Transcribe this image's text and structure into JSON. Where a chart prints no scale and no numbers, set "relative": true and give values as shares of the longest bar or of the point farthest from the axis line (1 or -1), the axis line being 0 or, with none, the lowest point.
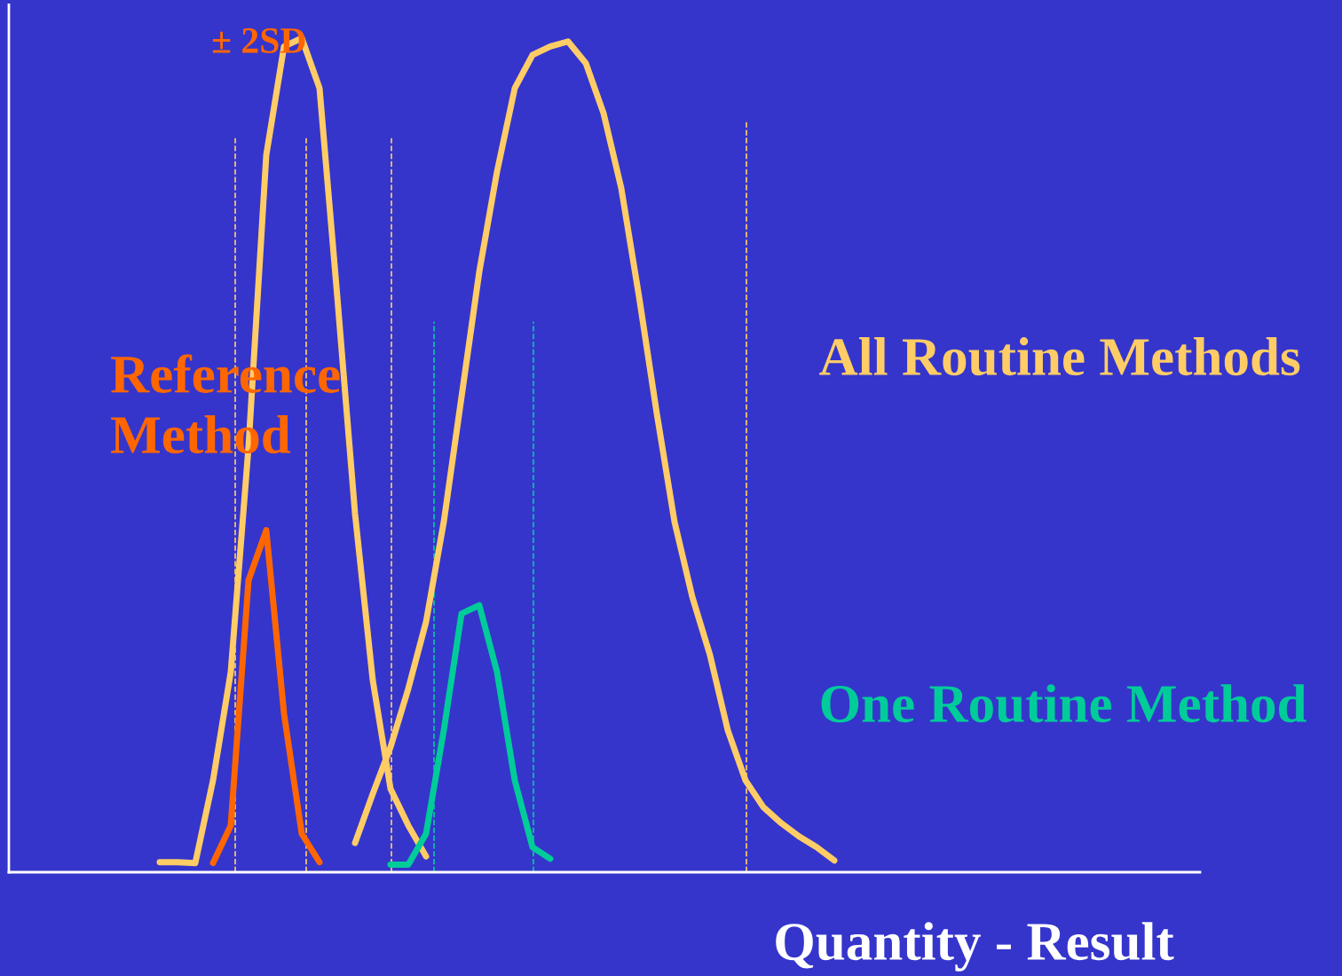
{
  "chart_data": {
    "type": "line",
    "relative": true,
    "xlabel": "Quantity - Result",
    "annotations": [
      "± 2SD"
    ],
    "categories": [
      null,
      null,
      null,
      null,
      null,
      null,
      null,
      null,
      null,
      null,
      null,
      null,
      null,
      null,
      null,
      null,
      null,
      null,
      null,
      null,
      null,
      null,
      null,
      null,
      null,
      null,
      null,
      null,
      null,
      null,
      null,
      null,
      null,
      null,
      null,
      null,
      null,
      null,
      null,
      null,
      null,
      null,
      null,
      null,
      null,
      null,
      null,
      null,
      null,
      null,
      null,
      null,
      null,
      null,
      null,
      null,
      null,
      null,
      null,
      null,
      null,
      null,
      null,
      null,
      null,
      null,
      null
    ],
    "series": [
      {
        "color": "#ffcc66",
        "values": [
          null,
          null,
          null,
          null,
          null,
          null,
          null,
          null,
          0.012,
          0.012,
          0.011,
          0.11,
          0.24,
          0.51,
          0.86,
          0.99,
          1.0,
          0.94,
          0.69,
          0.43,
          0.23,
          0.1,
          0.056,
          0.019,
          null,
          null,
          null,
          null,
          null,
          null,
          null,
          null,
          null,
          null,
          null,
          null,
          null,
          null,
          null,
          null,
          null,
          null,
          null,
          null,
          null,
          null,
          null,
          null,
          null,
          null,
          null,
          null,
          null,
          null,
          null,
          null,
          null,
          null,
          null,
          null,
          null,
          null,
          null,
          null,
          null,
          null,
          null
        ]
      },
      {
        "name": "All Routine Methods",
        "color": "#ffcc66",
        "values": [
          null,
          null,
          null,
          null,
          null,
          null,
          null,
          null,
          null,
          null,
          null,
          null,
          null,
          null,
          null,
          null,
          null,
          null,
          null,
          0.035,
          0.094,
          0.15,
          0.22,
          0.3,
          0.42,
          0.57,
          0.72,
          0.84,
          0.94,
          0.98,
          0.99,
          0.996,
          0.97,
          0.91,
          0.82,
          0.69,
          0.55,
          0.42,
          0.33,
          0.26,
          0.17,
          0.11,
          0.078,
          0.059,
          0.043,
          0.03,
          0.014,
          null,
          null,
          null,
          null,
          null,
          null,
          null,
          null,
          null,
          null,
          null,
          null,
          null,
          null,
          null,
          null,
          null,
          null,
          null,
          null
        ]
      },
      {
        "name": "Reference Method",
        "color": "#ff6600",
        "values": [
          null,
          null,
          null,
          null,
          null,
          null,
          null,
          null,
          null,
          null,
          null,
          0.011,
          0.056,
          0.35,
          0.41,
          0.19,
          0.046,
          0.012,
          null,
          null,
          null,
          null,
          null,
          null,
          null,
          null,
          null,
          null,
          null,
          null,
          null,
          null,
          null,
          null,
          null,
          null,
          null,
          null,
          null,
          null,
          null,
          null,
          null,
          null,
          null,
          null,
          null,
          null,
          null,
          null,
          null,
          null,
          null,
          null,
          null,
          null,
          null,
          null,
          null,
          null,
          null,
          null,
          null,
          null,
          null,
          null,
          null
        ]
      },
      {
        "name": "One Routine Method",
        "color": "#00cc99",
        "values": [
          null,
          null,
          null,
          null,
          null,
          null,
          null,
          null,
          null,
          null,
          null,
          null,
          null,
          null,
          null,
          null,
          null,
          null,
          null,
          null,
          null,
          0.009,
          0.009,
          0.046,
          0.17,
          0.31,
          0.32,
          0.24,
          0.11,
          0.03,
          0.016,
          null,
          null,
          null,
          null,
          null,
          null,
          null,
          null,
          null,
          null,
          null,
          null,
          null,
          null,
          null,
          null,
          null,
          null,
          null,
          null,
          null,
          null,
          null,
          null,
          null,
          null,
          null,
          null,
          null,
          null,
          null,
          null,
          null,
          null,
          null,
          null
        ]
      }
    ],
    "legend": false,
    "marker": "none",
    "line_style": "solid"
  }
}
